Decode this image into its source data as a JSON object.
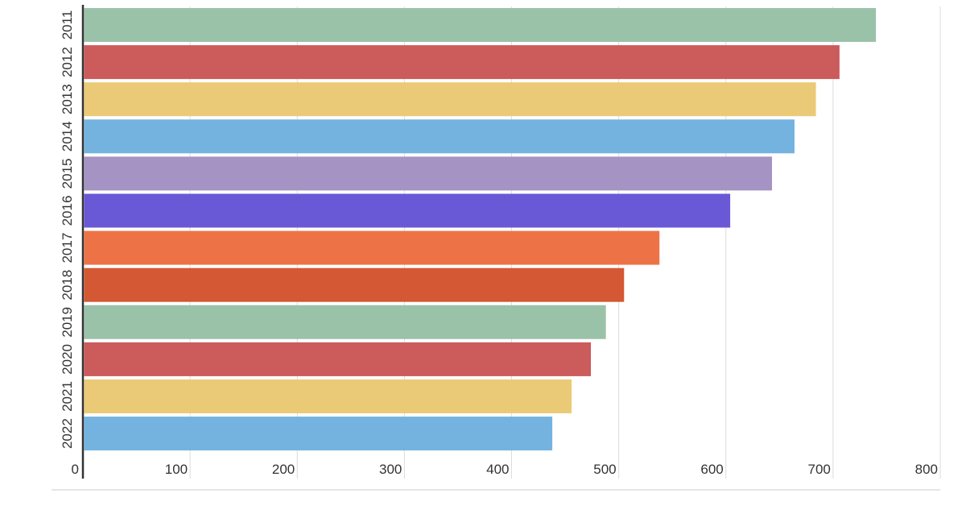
{
  "chart_data": {
    "type": "bar",
    "orientation": "horizontal",
    "categories": [
      "2011",
      "2012",
      "2013",
      "2014",
      "2015",
      "2016",
      "2017",
      "2018",
      "2019",
      "2020",
      "2021",
      "2022"
    ],
    "values": [
      740,
      706,
      684,
      664,
      643,
      604,
      538,
      505,
      488,
      474,
      456,
      438
    ],
    "colors": [
      "#9ac2a9",
      "#cc5b5b",
      "#ebca77",
      "#74b3e0",
      "#a593c4",
      "#6a59d6",
      "#ed7347",
      "#d45833",
      "#9ac2a9",
      "#cc5b5b",
      "#ebca77",
      "#74b3e0"
    ],
    "x_ticks": [
      "0",
      "100",
      "200",
      "300",
      "400",
      "500",
      "600",
      "700",
      "800"
    ],
    "xlim": [
      0,
      800
    ],
    "grid": true,
    "legend": "none"
  }
}
